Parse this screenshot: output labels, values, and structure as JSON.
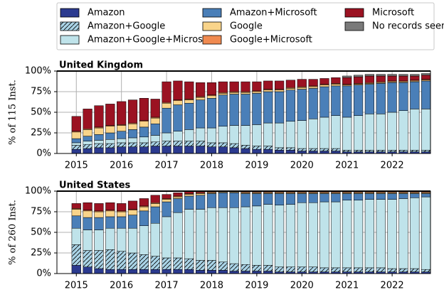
{
  "chart_data": [
    {
      "type": "stacked_bar",
      "title": "United Kingdom",
      "ylabel": "% of 115 Inst.",
      "x": [
        2015,
        2015.25,
        2015.5,
        2015.75,
        2016,
        2016.25,
        2016.5,
        2016.75,
        2017,
        2017.25,
        2017.5,
        2017.75,
        2018,
        2018.25,
        2018.5,
        2018.75,
        2019,
        2019.25,
        2019.5,
        2019.75,
        2020,
        2020.25,
        2020.5,
        2020.75,
        2021,
        2021.25,
        2021.5,
        2021.75,
        2022,
        2022.25,
        2022.5,
        2022.75
      ],
      "xlim": [
        2014.57,
        2022.85
      ],
      "xticks": [
        2015,
        2016,
        2017,
        2018,
        2019,
        2020,
        2021,
        2022
      ],
      "ylim": [
        0,
        100
      ],
      "yticks": [
        {
          "value": 0,
          "label": "0%"
        },
        {
          "value": 25,
          "label": "25%"
        },
        {
          "value": 50,
          "label": "50%"
        },
        {
          "value": 75,
          "label": "75%"
        },
        {
          "value": 100,
          "label": "100%"
        }
      ],
      "grid": true,
      "series": [
        {
          "name": "Amazon",
          "color": "#2b3a8f",
          "values": [
            5,
            6,
            7,
            7,
            8,
            8,
            8,
            9,
            9,
            9,
            9,
            9,
            8,
            8,
            7,
            6,
            5,
            5,
            4,
            4,
            3,
            3,
            3,
            3,
            2,
            2,
            2,
            2,
            2,
            2,
            2,
            2
          ]
        },
        {
          "name": "Amazon+Google",
          "color": "#a9d3e6",
          "hatch": true,
          "values": [
            5,
            5,
            5,
            5,
            5,
            5,
            5,
            5,
            6,
            6,
            6,
            6,
            5,
            5,
            5,
            4,
            4,
            4,
            3,
            3,
            3,
            3,
            3,
            3,
            2,
            2,
            2,
            2,
            2,
            2,
            2,
            2
          ]
        },
        {
          "name": "Amazon+Google+Microsoft",
          "color": "#bfe3ea",
          "values": [
            3,
            4,
            4,
            5,
            5,
            6,
            7,
            8,
            10,
            12,
            14,
            16,
            18,
            20,
            22,
            24,
            26,
            28,
            30,
            32,
            34,
            36,
            38,
            40,
            40,
            42,
            44,
            44,
            46,
            48,
            50,
            50
          ]
        },
        {
          "name": "Amazon+Microsoft",
          "color": "#4a7fb8",
          "values": [
            5,
            6,
            7,
            8,
            9,
            10,
            12,
            14,
            30,
            32,
            32,
            34,
            36,
            38,
            38,
            38,
            38,
            38,
            38,
            38,
            38,
            37,
            37,
            36,
            38,
            37,
            36,
            37,
            36,
            34,
            33,
            34
          ]
        },
        {
          "name": "Google",
          "color": "#f9d48a",
          "values": [
            8,
            8,
            8,
            8,
            7,
            7,
            7,
            7,
            6,
            5,
            4,
            3,
            3,
            2,
            2,
            2,
            2,
            2,
            2,
            2,
            2,
            2,
            2,
            2,
            1,
            1,
            1,
            1,
            1,
            1,
            1,
            1
          ]
        },
        {
          "name": "Google+Microsoft",
          "color": "#f08a50",
          "values": [
            1,
            1,
            1,
            1,
            1,
            1,
            1,
            1,
            1,
            1,
            1,
            1,
            1,
            1,
            1,
            1,
            1,
            1,
            1,
            1,
            1,
            1,
            1,
            1,
            1,
            1,
            1,
            1,
            1,
            1,
            1,
            1
          ]
        },
        {
          "name": "Microsoft",
          "color": "#9b1222",
          "values": [
            18,
            24,
            26,
            26,
            28,
            28,
            27,
            22,
            25,
            23,
            21,
            17,
            15,
            13,
            12,
            12,
            11,
            10,
            10,
            9,
            9,
            8,
            7,
            7,
            8,
            8,
            8,
            7,
            6,
            6,
            5,
            5
          ]
        },
        {
          "name": "No records seen",
          "color": "#7a7a7a",
          "values": [
            0,
            0,
            0,
            0,
            0,
            0,
            0,
            0,
            0,
            0,
            0,
            0,
            0,
            0,
            0,
            0,
            0,
            0,
            0,
            0,
            0,
            0,
            0,
            0,
            2,
            2,
            2,
            2,
            2,
            2,
            2,
            2
          ]
        }
      ]
    },
    {
      "type": "stacked_bar",
      "title": "United States",
      "ylabel": "% of 260 Inst.",
      "x": [
        2015,
        2015.25,
        2015.5,
        2015.75,
        2016,
        2016.25,
        2016.5,
        2016.75,
        2017,
        2017.25,
        2017.5,
        2017.75,
        2018,
        2018.25,
        2018.5,
        2018.75,
        2019,
        2019.25,
        2019.5,
        2019.75,
        2020,
        2020.25,
        2020.5,
        2020.75,
        2021,
        2021.25,
        2021.5,
        2021.75,
        2022,
        2022.25,
        2022.5,
        2022.75
      ],
      "xlim": [
        2014.57,
        2022.85
      ],
      "xticks": [
        2015,
        2016,
        2017,
        2018,
        2019,
        2020,
        2021,
        2022
      ],
      "ylim": [
        0,
        100
      ],
      "yticks": [
        {
          "value": 0,
          "label": "0%"
        },
        {
          "value": 25,
          "label": "25%"
        },
        {
          "value": 50,
          "label": "50%"
        },
        {
          "value": 75,
          "label": "75%"
        },
        {
          "value": 100,
          "label": "100%"
        }
      ],
      "grid": true,
      "series": [
        {
          "name": "Amazon",
          "color": "#2b3a8f",
          "values": [
            10,
            8,
            6,
            5,
            5,
            5,
            5,
            5,
            5,
            5,
            5,
            4,
            4,
            4,
            3,
            3,
            3,
            3,
            2,
            2,
            2,
            2,
            2,
            2,
            2,
            2,
            2,
            2,
            2,
            2,
            2,
            2
          ]
        },
        {
          "name": "Amazon+Google",
          "color": "#a9d3e6",
          "hatch": true,
          "values": [
            25,
            20,
            22,
            24,
            22,
            20,
            18,
            16,
            14,
            14,
            13,
            12,
            12,
            10,
            9,
            8,
            7,
            7,
            6,
            6,
            6,
            6,
            5,
            5,
            5,
            5,
            5,
            5,
            4,
            4,
            4,
            3
          ]
        },
        {
          "name": "Amazon+Google+Microsoft",
          "color": "#bfe3ea",
          "values": [
            20,
            25,
            25,
            26,
            28,
            30,
            35,
            40,
            50,
            55,
            60,
            62,
            64,
            66,
            68,
            70,
            72,
            74,
            75,
            76,
            78,
            78,
            80,
            80,
            82,
            82,
            83,
            83,
            84,
            85,
            86,
            88
          ]
        },
        {
          "name": "Amazon+Microsoft",
          "color": "#4a7fb8",
          "values": [
            15,
            15,
            15,
            14,
            14,
            16,
            18,
            20,
            18,
            17,
            16,
            17,
            17,
            18,
            18,
            16,
            15,
            13,
            14,
            13,
            11,
            11,
            10,
            10,
            8,
            8,
            7,
            7,
            7,
            6,
            5,
            4
          ]
        },
        {
          "name": "Google",
          "color": "#f9d48a",
          "values": [
            8,
            8,
            7,
            7,
            6,
            6,
            5,
            4,
            3,
            2,
            2,
            2,
            1,
            1,
            1,
            1,
            1,
            1,
            1,
            1,
            1,
            1,
            1,
            1,
            1,
            1,
            1,
            1,
            1,
            1,
            1,
            1
          ]
        },
        {
          "name": "Google+Microsoft",
          "color": "#f08a50",
          "values": [
            1,
            1,
            1,
            1,
            1,
            1,
            1,
            1,
            1,
            1,
            1,
            1,
            1,
            1,
            1,
            1,
            1,
            1,
            1,
            1,
            1,
            1,
            1,
            1,
            1,
            1,
            1,
            1,
            1,
            1,
            1,
            1
          ]
        },
        {
          "name": "Microsoft",
          "color": "#9b1222",
          "values": [
            6,
            9,
            9,
            9,
            9,
            10,
            9,
            9,
            5,
            4,
            3,
            2,
            0,
            0,
            0,
            0,
            0,
            0,
            0,
            0,
            0,
            0,
            0,
            0,
            0,
            0,
            0,
            0,
            0,
            0,
            0,
            0
          ]
        },
        {
          "name": "No records seen",
          "color": "#7a7a7a",
          "values": [
            0,
            0,
            0,
            0,
            0,
            0,
            0,
            0,
            0,
            0,
            0,
            0,
            0,
            0,
            0,
            0,
            0,
            0,
            0,
            0,
            0,
            0,
            0,
            0,
            0,
            0,
            0,
            0,
            0,
            0,
            0,
            0
          ]
        }
      ]
    }
  ]
}
